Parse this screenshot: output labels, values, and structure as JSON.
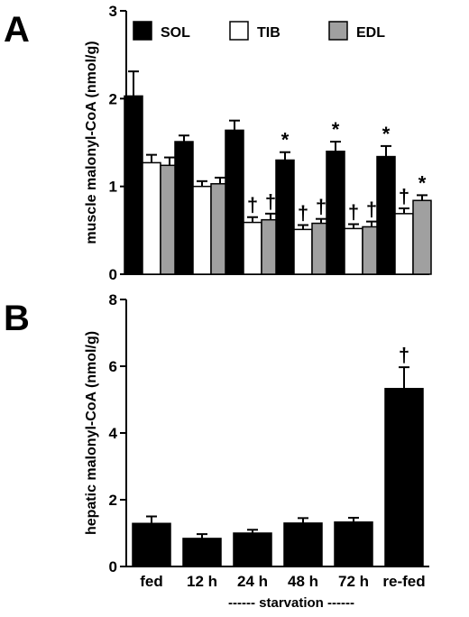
{
  "panel_a_label": "A",
  "panel_b_label": "B",
  "xlabel_footer": "------ starvation ------",
  "chart_data": [
    {
      "type": "bar",
      "panel": "A",
      "ylabel": "muscle malonyl-CoA (nmol/g)",
      "ylim": [
        0,
        3
      ],
      "yticks": [
        0,
        1,
        2,
        3
      ],
      "categories": [
        "fed",
        "12 h",
        "24 h",
        "48 h",
        "72 h",
        "re-fed"
      ],
      "legend_placement": "top",
      "series": [
        {
          "name": "SOL",
          "color": "#000000",
          "values": [
            2.03,
            1.51,
            1.64,
            1.3,
            1.4,
            1.34
          ],
          "errors": [
            0.28,
            0.07,
            0.11,
            0.09,
            0.11,
            0.12
          ],
          "marks": [
            "",
            "",
            "",
            "*",
            "*",
            "*"
          ]
        },
        {
          "name": "TIB",
          "color": "#ffffff",
          "values": [
            1.27,
            1.0,
            0.59,
            0.51,
            0.52,
            0.69
          ],
          "errors": [
            0.09,
            0.06,
            0.06,
            0.05,
            0.05,
            0.06
          ],
          "marks": [
            "",
            "",
            "†",
            "†",
            "†",
            "†"
          ]
        },
        {
          "name": "EDL",
          "color": "#a0a0a0",
          "values": [
            1.24,
            1.03,
            0.62,
            0.58,
            0.54,
            0.84
          ],
          "errors": [
            0.09,
            0.07,
            0.07,
            0.05,
            0.06,
            0.06
          ],
          "marks": [
            "",
            "",
            "†",
            "†",
            "†",
            "*"
          ]
        }
      ]
    },
    {
      "type": "bar",
      "panel": "B",
      "ylabel": "hepatic malonyl-CoA (nmol/g)",
      "ylim": [
        0,
        8
      ],
      "yticks": [
        0,
        2,
        4,
        6,
        8
      ],
      "categories": [
        "fed",
        "12 h",
        "24 h",
        "48 h",
        "72 h",
        "re-fed"
      ],
      "series": [
        {
          "name": "",
          "color": "#000000",
          "values": [
            1.29,
            0.84,
            1.0,
            1.3,
            1.33,
            5.33
          ],
          "errors": [
            0.21,
            0.13,
            0.1,
            0.15,
            0.13,
            0.64
          ],
          "marks": [
            "",
            "",
            "",
            "",
            "",
            "†"
          ]
        }
      ]
    }
  ]
}
